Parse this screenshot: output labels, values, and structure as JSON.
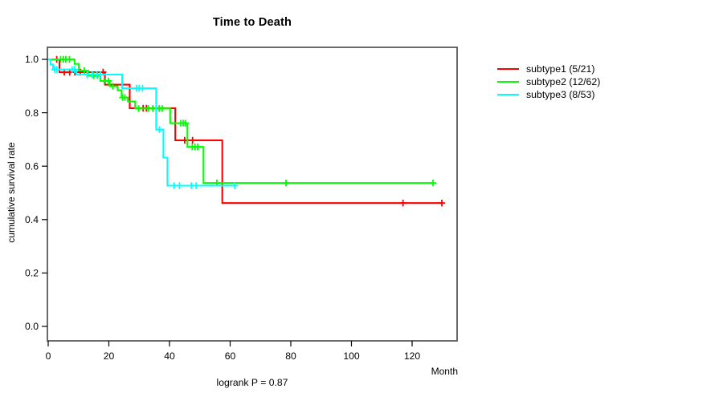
{
  "title": "Time to Death",
  "xlabel": "Month",
  "ylabel": "cumulative survival rate",
  "footnote": "logrank P = 0.87",
  "colors": {
    "background": "#ffffff",
    "axis_box": "#595959",
    "tick": "#000000",
    "text": "#000000"
  },
  "legend": {
    "position": "right",
    "items": [
      {
        "label": "subtype1 (5/21)",
        "color": "#ff0000"
      },
      {
        "label": "subtype2 (12/62)",
        "color": "#00ff00"
      },
      {
        "label": "subtype3 (8/53)",
        "color": "#00ffff"
      }
    ]
  },
  "chart_data": {
    "type": "line",
    "subtype": "kaplan-meier-step",
    "title": "Time to Death",
    "xlabel": "Month",
    "ylabel": "cumulative survival rate",
    "annotation": "logrank P = 0.87",
    "grid": false,
    "legend_position": "right",
    "xlim": [
      0,
      135
    ],
    "ylim": [
      0.0,
      1.04
    ],
    "x_ticks": [
      {
        "v": 0,
        "label": "0"
      },
      {
        "v": 20,
        "label": "20"
      },
      {
        "v": 40,
        "label": "40"
      },
      {
        "v": 60,
        "label": "60"
      },
      {
        "v": 80,
        "label": "80"
      },
      {
        "v": 100,
        "label": "100"
      },
      {
        "v": 120,
        "label": "120"
      }
    ],
    "y_ticks": [
      {
        "v": 0.0,
        "label": "0.0"
      },
      {
        "v": 0.2,
        "label": "0.2"
      },
      {
        "v": 0.4,
        "label": "0.4"
      },
      {
        "v": 0.6,
        "label": "0.6"
      },
      {
        "v": 0.8,
        "label": "0.8"
      },
      {
        "v": 1.0,
        "label": "1.0"
      }
    ],
    "series": [
      {
        "name": "subtype1 (5/21)",
        "color": "#ff0000",
        "start": [
          0,
          1.0
        ],
        "end_month": 129.8,
        "steps": [
          [
            3.7,
            0.952
          ],
          [
            18.7,
            0.905
          ],
          [
            26.9,
            0.817
          ],
          [
            41.9,
            0.697
          ],
          [
            57.4,
            0.462
          ]
        ],
        "censors": [
          [
            2.8,
            1.0
          ],
          [
            5.3,
            0.952
          ],
          [
            7.1,
            0.952
          ],
          [
            8.8,
            0.952
          ],
          [
            10.6,
            0.952
          ],
          [
            18.1,
            0.952
          ],
          [
            31.3,
            0.817
          ],
          [
            32.4,
            0.817
          ],
          [
            45.0,
            0.697
          ],
          [
            47.6,
            0.697
          ],
          [
            117.0,
            0.462
          ],
          [
            129.8,
            0.462
          ]
        ]
      },
      {
        "name": "subtype2 (12/62)",
        "color": "#00ff00",
        "start": [
          0,
          1.0
        ],
        "end_month": 126.9,
        "steps": [
          [
            8.7,
            0.983
          ],
          [
            10.1,
            0.958
          ],
          [
            13.2,
            0.939
          ],
          [
            17.2,
            0.919
          ],
          [
            20.3,
            0.899
          ],
          [
            22.9,
            0.884
          ],
          [
            24.2,
            0.857
          ],
          [
            26.3,
            0.842
          ],
          [
            28.7,
            0.816
          ],
          [
            40.2,
            0.761
          ],
          [
            45.9,
            0.672
          ],
          [
            51.2,
            0.537
          ]
        ],
        "censors": [
          [
            4.1,
            1.0
          ],
          [
            5.0,
            1.0
          ],
          [
            5.8,
            1.0
          ],
          [
            7.0,
            1.0
          ],
          [
            11.9,
            0.958
          ],
          [
            15.0,
            0.939
          ],
          [
            16.3,
            0.939
          ],
          [
            18.5,
            0.919
          ],
          [
            19.9,
            0.919
          ],
          [
            21.3,
            0.899
          ],
          [
            24.5,
            0.857
          ],
          [
            25.3,
            0.857
          ],
          [
            29.8,
            0.816
          ],
          [
            33.0,
            0.816
          ],
          [
            34.5,
            0.816
          ],
          [
            36.6,
            0.816
          ],
          [
            37.6,
            0.816
          ],
          [
            43.7,
            0.761
          ],
          [
            44.5,
            0.761
          ],
          [
            45.3,
            0.761
          ],
          [
            47.5,
            0.672
          ],
          [
            48.4,
            0.672
          ],
          [
            49.3,
            0.672
          ],
          [
            55.6,
            0.537
          ],
          [
            78.4,
            0.537
          ],
          [
            126.9,
            0.537
          ]
        ]
      },
      {
        "name": "subtype3 (8/53)",
        "color": "#00ffff",
        "start": [
          0,
          1.0
        ],
        "end_month": 61.5,
        "steps": [
          [
            0.8,
            0.981
          ],
          [
            1.6,
            0.962
          ],
          [
            9.3,
            0.943
          ],
          [
            24.4,
            0.892
          ],
          [
            35.6,
            0.737
          ],
          [
            38.0,
            0.632
          ],
          [
            39.3,
            0.527
          ]
        ],
        "censors": [
          [
            2.1,
            0.962
          ],
          [
            2.9,
            0.962
          ],
          [
            7.9,
            0.962
          ],
          [
            8.7,
            0.962
          ],
          [
            12.8,
            0.943
          ],
          [
            14.5,
            0.943
          ],
          [
            16.0,
            0.943
          ],
          [
            17.2,
            0.943
          ],
          [
            29.1,
            0.892
          ],
          [
            30.0,
            0.892
          ],
          [
            31.1,
            0.892
          ],
          [
            36.7,
            0.737
          ],
          [
            41.5,
            0.527
          ],
          [
            43.3,
            0.527
          ],
          [
            47.2,
            0.527
          ],
          [
            48.8,
            0.527
          ],
          [
            61.5,
            0.527
          ]
        ]
      }
    ]
  }
}
